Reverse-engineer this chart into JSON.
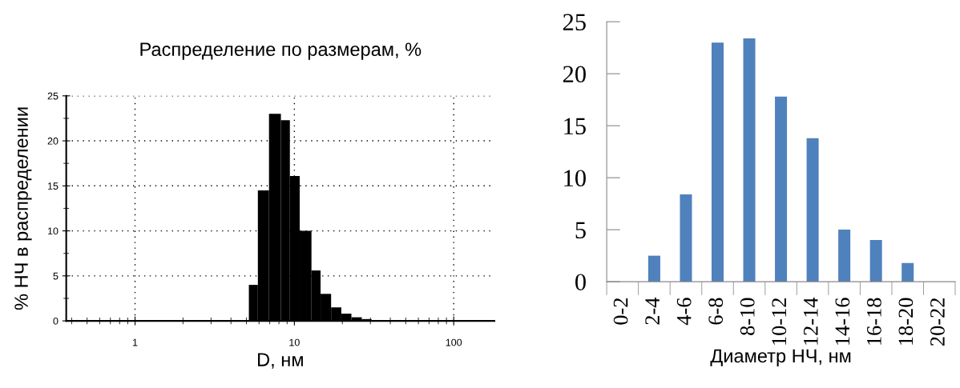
{
  "chart_data": [
    {
      "type": "histogram",
      "title": "Распределение по размерам, %",
      "xlabel": "D, нм",
      "ylabel": "% НЧ в распределении",
      "log": "x",
      "color": "#000000",
      "bins": [
        5.18,
        5.9,
        6.93,
        8.23,
        9.37,
        10.8,
        12.8,
        14.6,
        17.0,
        19.7,
        22.8,
        26.5,
        30.5
      ],
      "values": [
        4.0,
        14.5,
        23.0,
        22.3,
        16.1,
        10.0,
        5.6,
        3.0,
        1.5,
        0.8,
        0.4,
        0.2
      ],
      "xlim": [
        0.37,
        180
      ],
      "xticks": [
        1,
        10,
        100
      ],
      "ylim": [
        0,
        25
      ],
      "yticks": [
        0,
        5,
        10,
        15,
        20,
        25
      ],
      "grid": true
    },
    {
      "type": "bar",
      "xlabel": "Диаметр НЧ, нм",
      "color": "#4f81bd",
      "categories": [
        "0-2",
        "2-4",
        "4-6",
        "6-8",
        "8-10",
        "10-12",
        "12-14",
        "14-16",
        "16-18",
        "18-20",
        "20-22"
      ],
      "values": [
        0,
        2.5,
        8.4,
        23.0,
        23.4,
        17.8,
        13.8,
        5.0,
        4.0,
        1.8,
        0
      ],
      "ylim": [
        0,
        25
      ],
      "yticks": [
        0,
        5,
        10,
        15,
        20,
        25
      ],
      "grid": false
    }
  ]
}
